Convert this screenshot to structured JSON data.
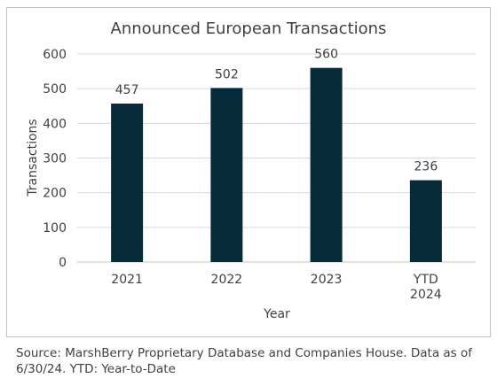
{
  "chart_data": {
    "type": "bar",
    "title": "Announced European Transactions",
    "xlabel": "Year",
    "ylabel": "Transactions",
    "categories": [
      [
        "2021"
      ],
      [
        "2022"
      ],
      [
        "2023"
      ],
      [
        "YTD",
        "2024"
      ]
    ],
    "values": [
      457,
      502,
      560,
      236
    ],
    "data_labels": [
      "457",
      "502",
      "560",
      "236"
    ],
    "ylim": [
      0,
      600
    ],
    "yticks": [
      "0",
      "100",
      "200",
      "300",
      "400",
      "500",
      "600"
    ],
    "grid": true,
    "legend": "none",
    "bar_color": "#062a3a"
  },
  "source_note": "Source: MarshBerry Proprietary Database and Companies House. Data as of 6/30/24. YTD: Year-to-Date"
}
